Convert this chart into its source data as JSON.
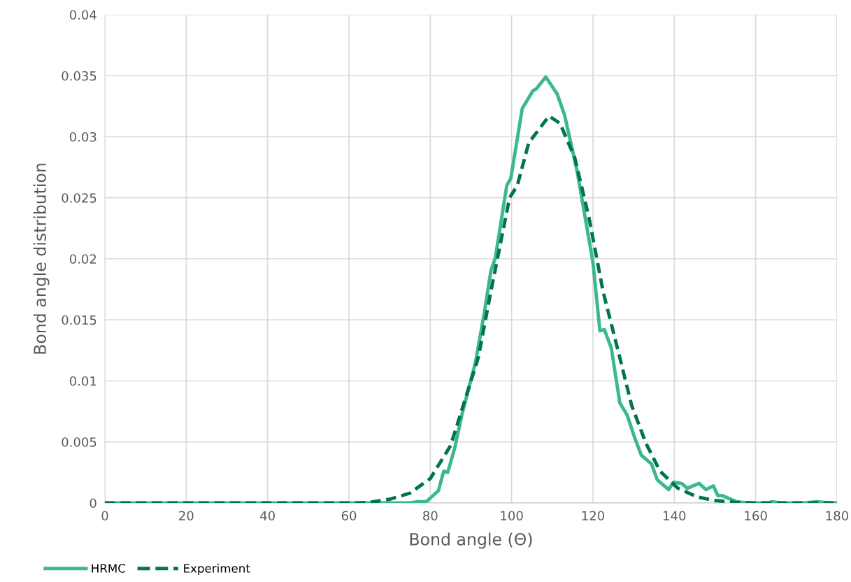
{
  "chart_data": {
    "type": "line",
    "xlabel": "Bond angle (Θ)",
    "ylabel": "Bond angle distribution",
    "xlim": [
      0,
      180
    ],
    "xticks": [
      0,
      20,
      40,
      60,
      80,
      100,
      120,
      140,
      160,
      180
    ],
    "ylim": [
      0,
      0.04
    ],
    "yticks": [
      0,
      0.005,
      0.01,
      0.015,
      0.02,
      0.025,
      0.03,
      0.035,
      0.04
    ],
    "grid": true,
    "legend": "bottom left",
    "marker": "none",
    "series": [
      {
        "name": "HRMC",
        "color": "#3cb98a",
        "line_style": "solid",
        "x": [
          0,
          20,
          40,
          60,
          75,
          77,
          79,
          80,
          82,
          83.3,
          84.3,
          86,
          87.9,
          91.1,
          93.2,
          94.9,
          96.0,
          98.8,
          99.8,
          102.6,
          105.3,
          106.0,
          108.4,
          111.2,
          113.0,
          116.1,
          120.0,
          121.7,
          122.8,
          124.5,
          126.6,
          128.4,
          130.2,
          131.9,
          134.4,
          135.8,
          138.6,
          139.8,
          141.8,
          143.2,
          146.1,
          147.8,
          149.6,
          150.7,
          151.8,
          155.3,
          158,
          163,
          164,
          166,
          172,
          175,
          178,
          180
        ],
        "values": [
          0,
          0,
          0,
          0,
          0,
          0.0001,
          0.0001,
          0.0004,
          0.001,
          0.0026,
          0.0025,
          0.0045,
          0.0074,
          0.0115,
          0.0154,
          0.019,
          0.0201,
          0.026,
          0.0266,
          0.0323,
          0.0338,
          0.0339,
          0.0349,
          0.0335,
          0.0318,
          0.0272,
          0.0197,
          0.0141,
          0.0142,
          0.0127,
          0.0082,
          0.0072,
          0.0054,
          0.0039,
          0.0032,
          0.0019,
          0.0011,
          0.0017,
          0.0016,
          0.0012,
          0.0016,
          0.0011,
          0.0014,
          0.0006,
          0.0006,
          0.0001,
          0,
          0,
          0.0001,
          0,
          0,
          0.0001,
          0,
          0
        ]
      },
      {
        "name": "Experiment",
        "color": "#00764a",
        "line_style": "dashed",
        "x": [
          0,
          20,
          40,
          62,
          65,
          70,
          75,
          80,
          85,
          91.8,
          95,
          99.5,
          101.4,
          104.2,
          109.2,
          111.9,
          115.5,
          119.0,
          122.5,
          126.0,
          129.5,
          133.0,
          136.5,
          140.9,
          145.6,
          150,
          155,
          160,
          180
        ],
        "values": [
          0,
          0,
          0,
          0,
          5e-05,
          0.0003,
          0.0008,
          0.002,
          0.0047,
          0.0119,
          0.0175,
          0.025,
          0.026,
          0.0295,
          0.0317,
          0.0311,
          0.0283,
          0.0234,
          0.0173,
          0.0127,
          0.008,
          0.0049,
          0.0026,
          0.0012,
          0.0005,
          0.0002,
          5e-05,
          0,
          0
        ]
      }
    ]
  }
}
